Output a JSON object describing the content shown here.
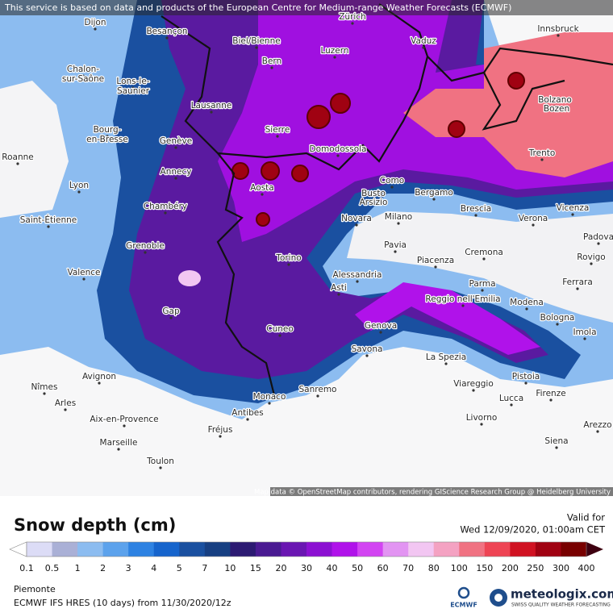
{
  "banner": "This service is based on data and products of the European Centre for Medium-range Weather Forecasts (ECMWF)",
  "attribution": "Map data © OpenStreetMap contributors, rendering GIScience Research Group @ Heidelberg University",
  "map": {
    "places": [
      "Dijon",
      "Besançon",
      "Biel/Bienne",
      "Zürich",
      "Vaduz",
      "Innsbruck",
      "Bern",
      "Luzern",
      "Chalon-",
      "sur-Saône",
      "Lons-le-",
      "Saunier",
      "Lausanne",
      "Sierre",
      "Domodossola",
      "Bolzano",
      "Bozen",
      "Bourg-",
      "en-Bresse",
      "Genève",
      "Trento",
      "Roanne",
      "Annecy",
      "Lyon",
      "Aosta",
      "Como",
      "Busto",
      "Arsizio",
      "Bergamo",
      "Chambéry",
      "Brescia",
      "Vicenza",
      "Saint-Étienne",
      "Novara",
      "Milano",
      "Verona",
      "Grenoble",
      "Pavia",
      "Padova",
      "Cremona",
      "Piacenza",
      "Torino",
      "Rovigo",
      "Valence",
      "Alessandria",
      "Parma",
      "Ferrara",
      "Asti",
      "Reggio nell'Emilia",
      "Modena",
      "Gap",
      "Bologna",
      "Cuneo",
      "Genova",
      "Imola",
      "Savona",
      "La Spezia",
      "Pistoia",
      "Avignon",
      "Nîmes",
      "Sanremo",
      "Arles",
      "Monaco",
      "Viareggio",
      "Lucca",
      "Firenze",
      "Antibes",
      "Livorno",
      "Aix-en-Provence",
      "Fréjus",
      "Marseille",
      "Siena",
      "Toulon",
      "Arezzo"
    ]
  },
  "legend": {
    "title": "Snow depth (cm)",
    "valid_label": "Valid for",
    "valid_time": "Wed 12/09/2020, 01:00am CET",
    "ticks": [
      "0.1",
      "0.5",
      "1",
      "2",
      "3",
      "4",
      "5",
      "7",
      "10",
      "15",
      "20",
      "30",
      "40",
      "50",
      "60",
      "70",
      "80",
      "100",
      "150",
      "200",
      "250",
      "300",
      "400"
    ],
    "under_color": "#ffffff",
    "colors": [
      "#dcdcf6",
      "#aab0d6",
      "#8cbcf0",
      "#5ca2ec",
      "#2e82e2",
      "#1664cc",
      "#1a50a0",
      "#173f82",
      "#2c1a72",
      "#4a1a92",
      "#6a16b2",
      "#8c10d2",
      "#b012ea",
      "#d244f2",
      "#e294f2",
      "#f2c6f2",
      "#f4a2c2",
      "#f07282",
      "#ee4454",
      "#d01222",
      "#a00212",
      "#780000"
    ],
    "over_color": "#3e0010"
  },
  "footer": {
    "region": "Piemonte",
    "model": "ECMWF IFS HRES (10 days) from 11/30/2020/12z"
  },
  "logos": {
    "ecmwf": "ECMWF",
    "brand": "meteologix.com",
    "tagline": "SWISS QUALITY WEATHER FORECASTING"
  }
}
